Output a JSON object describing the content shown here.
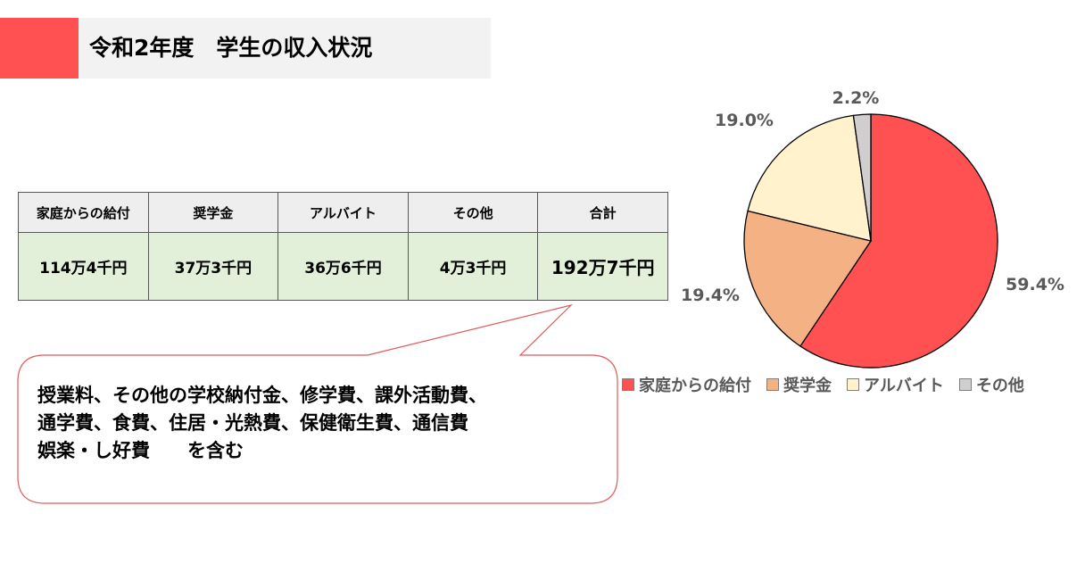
{
  "header": {
    "title": "令和2年度　学生の収入状況"
  },
  "table": {
    "headers": [
      "家庭からの給付",
      "奨学金",
      "アルバイト",
      "その他",
      "合計"
    ],
    "values": [
      "114万4千円",
      "37万3千円",
      "36万6千円",
      "4万3千円",
      "192万7千円"
    ]
  },
  "callout": {
    "text": "授業料、その他の学校納付金、修学費、課外活動費、\n通学費、食費、住居・光熱費、保健衛生費、通信費\n娯楽・し好費　　を含む"
  },
  "colors": {
    "accent": "#ff5052",
    "slice_family": "#ff5052",
    "slice_scholarship": "#f4b183",
    "slice_parttime": "#fff2cc",
    "slice_other": "#d0cece",
    "label_gray": "#595959",
    "callout_border": "#e05a5a"
  },
  "chart_data": {
    "type": "pie",
    "title": "",
    "categories": [
      "家庭からの給付",
      "奨学金",
      "アルバイト",
      "その他"
    ],
    "values": [
      59.4,
      19.4,
      19.0,
      2.2
    ],
    "labels": [
      "59.4%",
      "19.4%",
      "19.0%",
      "2.2%"
    ],
    "legend_position": "bottom",
    "colors": [
      "#ff5052",
      "#f4b183",
      "#fff2cc",
      "#d0cece"
    ]
  }
}
